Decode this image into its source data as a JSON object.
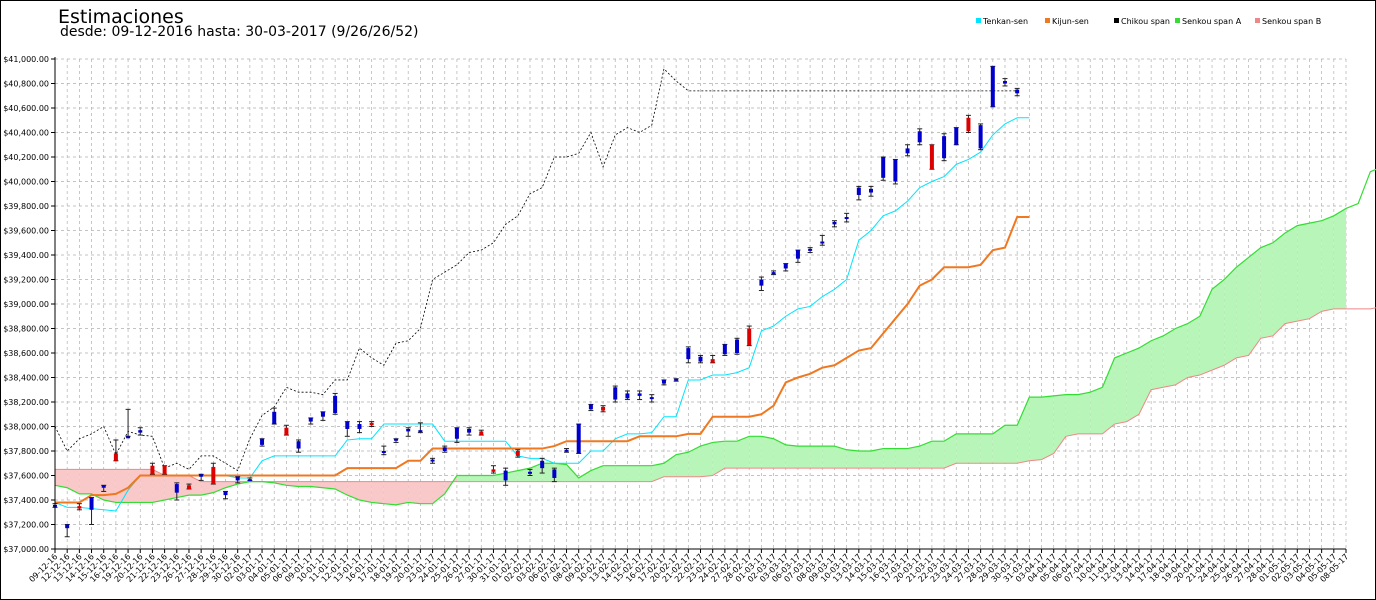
{
  "chart_data": {
    "type": "ichimoku",
    "title": "Estimaciones",
    "subtitle": "desde: 09-12-2016 hasta: 30-03-2017 (9/26/26/52)",
    "ylim": [
      37000,
      41000
    ],
    "ytick_labels": [
      "$37,000.00",
      "$37,200.00",
      "$37,400.00",
      "$37,600.00",
      "$37,800.00",
      "$38,000.00",
      "$38,200.00",
      "$38,400.00",
      "$38,600.00",
      "$38,800.00",
      "$39,000.00",
      "$39,200.00",
      "$39,400.00",
      "$39,600.00",
      "$39,800.00",
      "$40,000.00",
      "$40,200.00",
      "$40,400.00",
      "$40,600.00",
      "$40,800.00",
      "$41,000.00"
    ],
    "grid": true,
    "legend_position": "top-right",
    "colors": {
      "tenkan": "#00e5ff",
      "kijun": "#f07820",
      "chikou": "#000000",
      "senkou_a": "#33dd33",
      "senkou_b": "#ee8888",
      "cloud_bull": "#b8f5b8",
      "cloud_bear": "#f9c8c8",
      "candle_up": "#0000cc",
      "candle_down": "#dd0000"
    },
    "legend": [
      {
        "label": "Tenkan-sen",
        "color": "#00e5ff"
      },
      {
        "label": "Kijun-sen",
        "color": "#f07820"
      },
      {
        "label": "Chikou span",
        "color": "#000000"
      },
      {
        "label": "Senkou span A",
        "color": "#33dd33"
      },
      {
        "label": "Senkou span B",
        "color": "#ee8888"
      }
    ],
    "x": [
      "09-12-16",
      "12-12-16",
      "13-12-16",
      "14-12-16",
      "15-12-16",
      "16-12-16",
      "19-12-16",
      "20-12-16",
      "21-12-16",
      "22-12-16",
      "23-12-16",
      "26-12-16",
      "27-12-16",
      "28-12-16",
      "29-12-16",
      "30-12-16",
      "02-01-17",
      "03-01-17",
      "04-01-17",
      "05-01-17",
      "06-01-17",
      "09-01-17",
      "10-01-17",
      "11-01-17",
      "12-01-17",
      "13-01-17",
      "16-01-17",
      "17-01-17",
      "18-01-17",
      "19-01-17",
      "20-01-17",
      "23-01-17",
      "24-01-17",
      "25-01-17",
      "26-01-17",
      "27-01-17",
      "30-01-17",
      "31-01-17",
      "01-02-17",
      "02-02-17",
      "03-02-17",
      "06-02-17",
      "07-02-17",
      "08-02-17",
      "09-02-17",
      "10-02-17",
      "13-02-17",
      "14-02-17",
      "15-02-17",
      "16-02-17",
      "17-02-17",
      "20-02-17",
      "21-02-17",
      "22-02-17",
      "23-02-17",
      "24-02-17",
      "27-02-17",
      "28-02-17",
      "01-03-17",
      "02-03-17",
      "03-03-17",
      "06-03-17",
      "07-03-17",
      "08-03-17",
      "09-03-17",
      "10-03-17",
      "13-03-17",
      "14-03-17",
      "15-03-17",
      "16-03-17",
      "17-03-17",
      "20-03-17",
      "21-03-17",
      "22-03-17",
      "23-03-17",
      "24-03-17",
      "27-03-17",
      "28-03-17",
      "29-03-17",
      "30-03-17",
      "31-03-17",
      "03-04-17",
      "04-04-17",
      "05-04-17",
      "06-04-17",
      "07-04-17",
      "10-04-17",
      "11-04-17",
      "12-04-17",
      "13-04-17",
      "14-04-17",
      "17-04-17",
      "18-04-17",
      "19-04-17",
      "20-04-17",
      "21-04-17",
      "24-04-17",
      "25-04-17",
      "26-04-17",
      "27-04-17",
      "28-04-17",
      "01-05-17",
      "02-05-17",
      "03-05-17",
      "04-05-17",
      "05-05-17",
      "08-05-17"
    ],
    "candles_ohlc": [
      [
        37350,
        37370,
        37340,
        37360
      ],
      [
        37170,
        37200,
        37100,
        37200
      ],
      [
        37350,
        37370,
        37320,
        37330
      ],
      [
        37320,
        37420,
        37200,
        37420
      ],
      [
        37500,
        37520,
        37470,
        37520
      ],
      [
        37780,
        37890,
        37720,
        37720
      ],
      [
        37920,
        38140,
        37920,
        37920
      ],
      [
        37950,
        37990,
        37930,
        37970
      ],
      [
        37680,
        37700,
        37610,
        37610
      ],
      [
        37680,
        37680,
        37610,
        37610
      ],
      [
        37460,
        37540,
        37400,
        37530
      ],
      [
        37520,
        37530,
        37490,
        37490
      ],
      [
        37590,
        37610,
        37560,
        37610
      ],
      [
        37670,
        37700,
        37530,
        37530
      ],
      [
        37440,
        37470,
        37410,
        37470
      ],
      [
        37560,
        37590,
        37540,
        37590
      ],
      [
        37570,
        37580,
        37560,
        37570
      ],
      [
        37850,
        37900,
        37840,
        37900
      ],
      [
        38020,
        38150,
        38020,
        38120
      ],
      [
        37990,
        38010,
        37930,
        37930
      ],
      [
        37820,
        37890,
        37790,
        37880
      ],
      [
        38040,
        38070,
        38020,
        38070
      ],
      [
        38080,
        38120,
        38050,
        38120
      ],
      [
        38110,
        38270,
        38100,
        38250
      ],
      [
        37980,
        38040,
        37920,
        38040
      ],
      [
        37980,
        38040,
        37950,
        38020
      ],
      [
        38030,
        38040,
        38000,
        38010
      ],
      [
        37790,
        37840,
        37770,
        37800
      ],
      [
        37890,
        37900,
        37870,
        37900
      ],
      [
        37960,
        37990,
        37920,
        37980
      ],
      [
        37970,
        38030,
        37950,
        37970
      ],
      [
        37720,
        37740,
        37700,
        37730
      ],
      [
        37800,
        37840,
        37790,
        37830
      ],
      [
        37900,
        37990,
        37870,
        37990
      ],
      [
        37950,
        37990,
        37930,
        37980
      ],
      [
        37960,
        37970,
        37930,
        37930
      ],
      [
        37650,
        37680,
        37620,
        37630
      ],
      [
        37560,
        37660,
        37520,
        37640
      ],
      [
        37800,
        37810,
        37750,
        37760
      ],
      [
        37620,
        37650,
        37600,
        37630
      ],
      [
        37660,
        37740,
        37620,
        37720
      ],
      [
        37580,
        37660,
        37550,
        37650
      ],
      [
        37800,
        37820,
        37790,
        37810
      ],
      [
        37780,
        38020,
        37780,
        38020
      ],
      [
        38140,
        38180,
        38130,
        38180
      ],
      [
        38160,
        38170,
        38120,
        38130
      ],
      [
        38220,
        38330,
        38200,
        38320
      ],
      [
        38230,
        38290,
        38220,
        38270
      ],
      [
        38250,
        38290,
        38220,
        38270
      ],
      [
        38230,
        38260,
        38200,
        38240
      ],
      [
        38350,
        38380,
        38340,
        38380
      ],
      [
        38380,
        38390,
        38370,
        38390
      ],
      [
        38550,
        38650,
        38520,
        38640
      ],
      [
        38530,
        38580,
        38520,
        38570
      ],
      [
        38550,
        38580,
        38520,
        38520
      ],
      [
        38590,
        38670,
        38580,
        38670
      ],
      [
        38600,
        38720,
        38590,
        38710
      ],
      [
        38800,
        38820,
        38660,
        38660
      ],
      [
        39150,
        39220,
        39110,
        39200
      ],
      [
        39260,
        39270,
        39240,
        39260
      ],
      [
        39290,
        39330,
        39270,
        39330
      ],
      [
        39370,
        39440,
        39340,
        39440
      ],
      [
        39440,
        39460,
        39420,
        39450
      ],
      [
        39510,
        39560,
        39480,
        39510
      ],
      [
        39650,
        39680,
        39630,
        39670
      ],
      [
        39700,
        39740,
        39670,
        39710
      ],
      [
        39890,
        39960,
        39850,
        39950
      ],
      [
        39910,
        39960,
        39880,
        39940
      ],
      [
        40030,
        40200,
        40010,
        40200
      ],
      [
        40000,
        40180,
        39980,
        40180
      ],
      [
        40230,
        40300,
        40210,
        40270
      ],
      [
        40320,
        40430,
        40300,
        40410
      ],
      [
        40300,
        40300,
        40100,
        40100
      ],
      [
        40190,
        40390,
        40170,
        40370
      ],
      [
        40300,
        40440,
        40300,
        40440
      ],
      [
        40520,
        40540,
        40400,
        40410
      ],
      [
        40270,
        40470,
        40260,
        40460
      ],
      [
        40610,
        40940,
        40610,
        40940
      ],
      [
        40800,
        40840,
        40780,
        40820
      ],
      [
        40720,
        40760,
        40700,
        40750
      ]
    ],
    "tenkan_sen": [
      37380,
      37340,
      37340,
      37330,
      37320,
      37310,
      37480,
      37600,
      37600,
      37600,
      37600,
      37600,
      37600,
      37600,
      37600,
      37580,
      37580,
      37720,
      37760,
      37760,
      37760,
      37760,
      37760,
      37760,
      37890,
      37900,
      37900,
      38020,
      38020,
      38020,
      38020,
      38020,
      37880,
      37880,
      37880,
      37880,
      37880,
      37880,
      37760,
      37740,
      37740,
      37700,
      37700,
      37700,
      37800,
      37800,
      37900,
      37940,
      37940,
      37950,
      38080,
      38080,
      38380,
      38380,
      38420,
      38420,
      38440,
      38480,
      38780,
      38820,
      38900,
      38960,
      38980,
      39060,
      39120,
      39200,
      39520,
      39600,
      39720,
      39760,
      39840,
      39950,
      40000,
      40040,
      40140,
      40180,
      40240,
      40380,
      40470,
      40520,
      40520
    ],
    "kijun_sen": [
      37380,
      37380,
      37380,
      37440,
      37440,
      37450,
      37500,
      37600,
      37600,
      37600,
      37600,
      37600,
      37600,
      37600,
      37600,
      37600,
      37600,
      37600,
      37600,
      37600,
      37600,
      37600,
      37600,
      37600,
      37660,
      37660,
      37660,
      37660,
      37660,
      37720,
      37720,
      37820,
      37820,
      37820,
      37820,
      37820,
      37820,
      37820,
      37820,
      37820,
      37820,
      37840,
      37880,
      37880,
      37880,
      37880,
      37880,
      37880,
      37920,
      37920,
      37920,
      37920,
      37940,
      37940,
      38080,
      38080,
      38080,
      38080,
      38100,
      38170,
      38360,
      38400,
      38430,
      38480,
      38500,
      38560,
      38620,
      38640,
      38760,
      38880,
      39000,
      39150,
      39200,
      39300,
      39300,
      39300,
      39320,
      39440,
      39460,
      39710,
      39710
    ],
    "chikou_span": [
      38000,
      37800,
      37900,
      37940,
      38000,
      37770,
      37960,
      37930,
      37920,
      37660,
      37700,
      37650,
      37760,
      37760,
      37700,
      37640,
      37900,
      38090,
      38160,
      38320,
      38280,
      38280,
      38260,
      38380,
      38380,
      38640,
      38560,
      38500,
      38680,
      38700,
      38800,
      39200,
      39260,
      39320,
      39420,
      39440,
      39500,
      39650,
      39720,
      39900,
      39950,
      40200,
      40200,
      40230,
      40400,
      40120,
      40380,
      40440,
      40400,
      40460,
      40920,
      40820,
      40740,
      40740,
      40740,
      40740,
      40740,
      40740,
      40740,
      40740,
      40740,
      40740,
      40740,
      40740,
      40740,
      40740,
      40740,
      40740,
      40740,
      40740,
      40740,
      40740,
      40740,
      40740,
      40740,
      40740,
      40740,
      40740,
      40740,
      40740
    ],
    "senkou_a": [
      37520,
      37500,
      37450,
      37450,
      37400,
      37380,
      37380,
      37380,
      37380,
      37400,
      37420,
      37440,
      37440,
      37460,
      37500,
      37530,
      37550,
      37550,
      37540,
      37520,
      37510,
      37510,
      37500,
      37490,
      37440,
      37400,
      37380,
      37370,
      37360,
      37380,
      37370,
      37370,
      37450,
      37600,
      37600,
      37600,
      37600,
      37620,
      37640,
      37660,
      37700,
      37700,
      37690,
      37580,
      37640,
      37680,
      37680,
      37680,
      37680,
      37680,
      37700,
      37770,
      37790,
      37840,
      37870,
      37880,
      37880,
      37920,
      37920,
      37900,
      37850,
      37840,
      37840,
      37840,
      37840,
      37810,
      37800,
      37800,
      37820,
      37820,
      37820,
      37840,
      37880,
      37880,
      37940,
      37940,
      37940,
      37940,
      38010,
      38010,
      38240,
      38240,
      38250,
      38260,
      38260,
      38280,
      38320,
      38560,
      38600,
      38640,
      38700,
      38740,
      38800,
      38840,
      38900,
      39120,
      39200,
      39300,
      39380,
      39460,
      39500,
      39580,
      39640,
      39660,
      39680,
      39720,
      39780,
      39820,
      40080,
      40120,
      40120
    ],
    "senkou_b": [
      37650,
      37650,
      37650,
      37650,
      37650,
      37650,
      37650,
      37650,
      37650,
      37600,
      37600,
      37600,
      37550,
      37550,
      37550,
      37550,
      37550,
      37550,
      37550,
      37550,
      37550,
      37550,
      37550,
      37550,
      37550,
      37550,
      37550,
      37550,
      37550,
      37550,
      37550,
      37550,
      37550,
      37550,
      37550,
      37550,
      37550,
      37550,
      37550,
      37550,
      37550,
      37550,
      37550,
      37550,
      37550,
      37550,
      37550,
      37550,
      37550,
      37550,
      37590,
      37590,
      37590,
      37590,
      37600,
      37660,
      37660,
      37660,
      37660,
      37660,
      37660,
      37660,
      37660,
      37660,
      37660,
      37660,
      37660,
      37660,
      37660,
      37660,
      37660,
      37660,
      37660,
      37660,
      37700,
      37700,
      37700,
      37700,
      37700,
      37700,
      37720,
      37730,
      37780,
      37920,
      37940,
      37940,
      37940,
      38020,
      38040,
      38100,
      38300,
      38320,
      38340,
      38400,
      38420,
      38460,
      38500,
      38560,
      38580,
      38720,
      38740,
      38840,
      38860,
      38880,
      38940,
      38960,
      38960,
      38960,
      38960,
      38980,
      39010,
      39010,
      39220,
      39220
    ]
  }
}
